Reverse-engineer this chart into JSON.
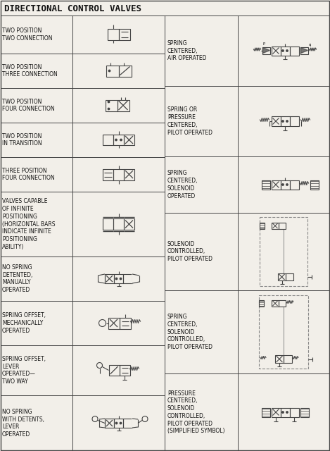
{
  "title": "DIRECTIONAL CONTROL VALVES",
  "title_fontsize": 9,
  "label_fontsize": 5.5,
  "bg_color": "#f2efe9",
  "line_color": "#444444",
  "text_color": "#111111",
  "rows_left": [
    {
      "label": "TWO POSITION\nTWO CONNECTION"
    },
    {
      "label": "TWO POSITION\nTHREE CONNECTION"
    },
    {
      "label": "TWO POSITION\nFOUR CONNECTION"
    },
    {
      "label": "TWO POSITION\nIN TRANSITION"
    },
    {
      "label": "THREE POSITION\nFOUR CONNECTION"
    },
    {
      "label": "VALVES CAPABLE\nOF INFINITE\nPOSITIONING\n(HORIZONTAL BARS\nINDICATE INFINITE\nPOSITIONING\nABILITY)"
    },
    {
      "label": "NO SPRING\nDETENTED,\nMANUALLY\nOPERATED"
    },
    {
      "label": "SPRING OFFSET,\nMECHANICALLY\nOPERATED"
    },
    {
      "label": "SPRING OFFSET,\nLEVER\nOPERATED—\nTWO WAY"
    },
    {
      "label": "NO SPRING\nWITH DETENTS,\nLEVER\nOPERATED"
    }
  ],
  "rows_right": [
    {
      "label": "SPRING\nCENTERED,\nAIR OPERATED"
    },
    {
      "label": "SPRING OR\nPRESSURE\nCENTERED,\nPILOT OPERATED"
    },
    {
      "label": "SPRING\nCENTERED,\nSOLENOID\nOPERATED"
    },
    {
      "label": "SOLENOID\nCONTROLLED,\nPILOT OPERATED"
    },
    {
      "label": "SPRING\nCENTERED,\nSOLENOID\nCONTROLLED,\nPILOT OPERATED"
    },
    {
      "label": "PRESSURE\nCENTERED,\nSOLENOID\nCONTROLLED,\nPILOT OPERATED\n(SIMPLIFIED SYMBOL)"
    }
  ]
}
